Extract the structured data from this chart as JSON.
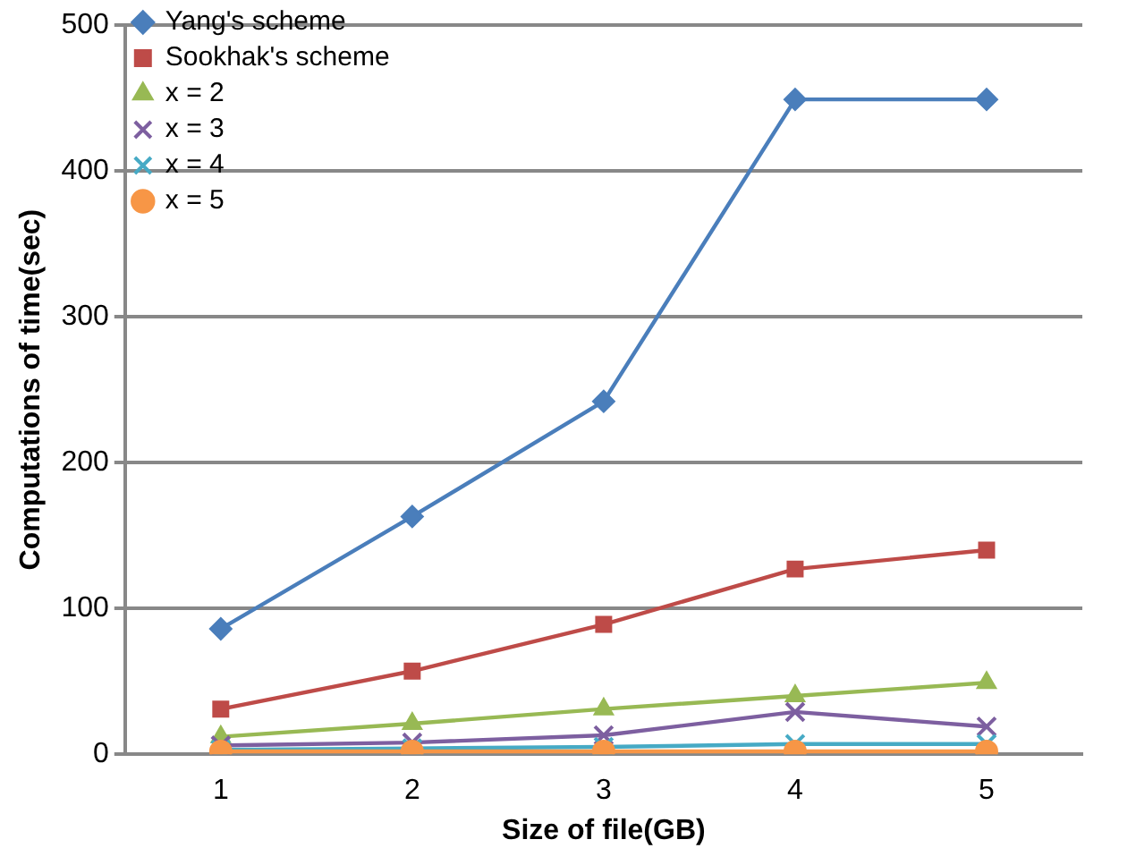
{
  "chart_data": {
    "type": "line",
    "xlabel": "Size of file(GB)",
    "ylabel": "Computations of time(sec)",
    "categories": [
      "1",
      "2",
      "3",
      "4",
      "5"
    ],
    "ylim": [
      0,
      500
    ],
    "yticks": [
      0,
      100,
      200,
      300,
      400,
      500
    ],
    "grid": "y",
    "legend": "top left",
    "series": [
      {
        "name": "Yang's scheme",
        "color": "#4a7ebb",
        "marker": "diamond",
        "values": [
          86,
          163,
          242,
          449,
          449
        ]
      },
      {
        "name": "Sookhak's scheme",
        "color": "#be4b48",
        "marker": "square",
        "values": [
          31,
          57,
          89,
          127,
          140
        ]
      },
      {
        "name": "x = 2",
        "color": "#98b954",
        "marker": "triangle",
        "values": [
          12,
          21,
          31,
          40,
          49
        ]
      },
      {
        "name": "x = 3",
        "color": "#7d5fa0",
        "marker": "cross",
        "values": [
          6,
          8,
          13,
          29,
          19
        ]
      },
      {
        "name": "x = 4",
        "color": "#46aac5",
        "marker": "cross",
        "values": [
          3,
          4,
          5,
          7,
          7
        ]
      },
      {
        "name": "x = 5",
        "color": "#f79646",
        "marker": "circle",
        "values": [
          2,
          2,
          2,
          2,
          2
        ]
      }
    ]
  }
}
